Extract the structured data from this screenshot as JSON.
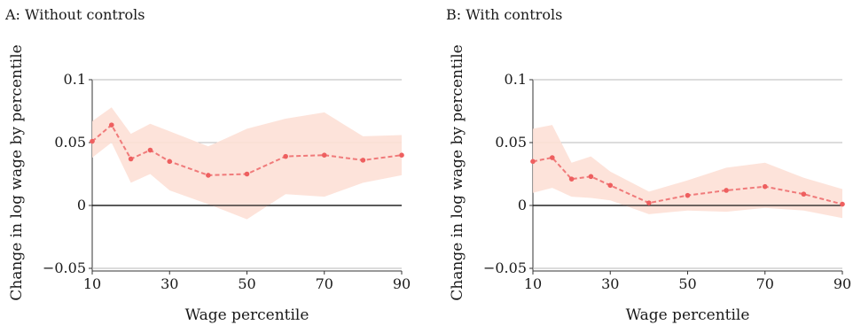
{
  "chart_data": [
    {
      "type": "line",
      "title": "A: Without controls",
      "xlabel": "Wage percentile",
      "ylabel": "Change in log wage by percentile",
      "xlim": [
        10,
        90
      ],
      "ylim": [
        -0.055,
        0.1
      ],
      "xticks": [
        "10",
        "30",
        "50",
        "70",
        "90"
      ],
      "yticks": [
        "0.1",
        "0.05",
        "0",
        "−0.05"
      ],
      "ytick_values": [
        0.1,
        0.05,
        0,
        -0.05
      ],
      "grid": "horizontal",
      "x": [
        10,
        15,
        20,
        25,
        30,
        40,
        50,
        60,
        70,
        80,
        90
      ],
      "y": [
        0.051,
        0.064,
        0.037,
        0.044,
        0.035,
        0.024,
        0.025,
        0.039,
        0.04,
        0.036,
        0.04
      ],
      "ci_upper": [
        0.067,
        0.078,
        0.057,
        0.065,
        0.059,
        0.047,
        0.061,
        0.069,
        0.074,
        0.055,
        0.056
      ],
      "ci_lower": [
        0.038,
        0.05,
        0.018,
        0.025,
        0.012,
        0.001,
        -0.011,
        0.009,
        0.007,
        0.018,
        0.024
      ],
      "line_color": "#f07a7a",
      "band_color": "#fde0d6"
    },
    {
      "type": "line",
      "title": "B: With controls",
      "xlabel": "Wage percentile",
      "ylabel": "Change in log wage by percentile",
      "xlim": [
        10,
        90
      ],
      "ylim": [
        -0.055,
        0.1
      ],
      "xticks": [
        "10",
        "30",
        "50",
        "70",
        "90"
      ],
      "yticks": [
        "0.1",
        "0.05",
        "0",
        "−0.05"
      ],
      "ytick_values": [
        0.1,
        0.05,
        0,
        -0.05
      ],
      "grid": "horizontal",
      "x": [
        10,
        15,
        20,
        25,
        30,
        40,
        50,
        60,
        70,
        80,
        90
      ],
      "y": [
        0.035,
        0.038,
        0.021,
        0.023,
        0.016,
        0.002,
        0.008,
        0.012,
        0.015,
        0.009,
        0.001
      ],
      "ci_upper": [
        0.061,
        0.064,
        0.034,
        0.039,
        0.027,
        0.011,
        0.02,
        0.03,
        0.034,
        0.022,
        0.013
      ],
      "ci_lower": [
        0.01,
        0.014,
        0.007,
        0.006,
        0.004,
        -0.007,
        -0.004,
        -0.005,
        -0.002,
        -0.004,
        -0.01
      ],
      "line_color": "#f07a7a",
      "band_color": "#fde0d6"
    }
  ]
}
